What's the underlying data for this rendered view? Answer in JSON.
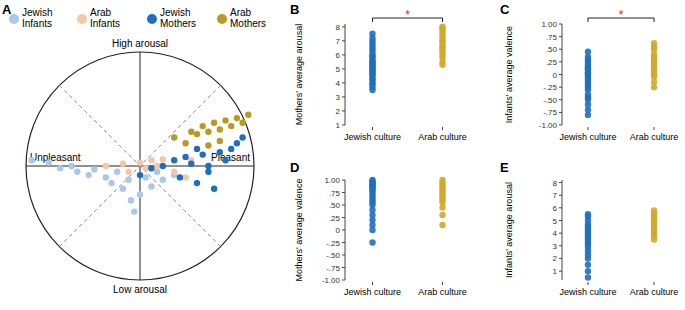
{
  "chart_data": [
    {
      "type": "scatter",
      "label": "A",
      "xlim": [
        -1,
        1
      ],
      "ylim": [
        -1,
        1
      ],
      "tick_labels": false,
      "quadrant_labels": {
        "top": "High arousal",
        "bottom": "Low arousal",
        "left": "Unpleasant",
        "right": "Pleasant"
      },
      "series": [
        {
          "name": "Jewish Infants",
          "color": "#a9c8ea",
          "x": [
            -0.95,
            -0.8,
            -0.7,
            -0.6,
            -0.55,
            -0.45,
            -0.4,
            -0.3,
            -0.25,
            -0.2,
            -0.15,
            -0.1,
            -0.08,
            -0.05,
            0,
            0.05,
            0.1,
            0.15,
            0.2,
            0.3
          ],
          "values": [
            0.05,
            0.03,
            -0.02,
            0,
            -0.05,
            -0.08,
            -0.03,
            -0.1,
            -0.15,
            -0.05,
            -0.2,
            -0.12,
            -0.3,
            -0.4,
            -0.25,
            -0.1,
            -0.18,
            -0.05,
            -0.12,
            -0.08
          ]
        },
        {
          "name": "Arab Infants",
          "color": "#f6c7a6",
          "x": [
            -0.3,
            -0.15,
            -0.1,
            0,
            0.05,
            0.1,
            0.15,
            0.2,
            0.3,
            0.4,
            0.45
          ],
          "values": [
            0,
            0.02,
            -0.05,
            0.03,
            -0.02,
            0.05,
            0,
            0.06,
            -0.05,
            -0.1,
            0.05
          ]
        },
        {
          "name": "Jewish Mothers",
          "color": "#1f6fc0",
          "x": [
            0,
            0.1,
            0.2,
            0.3,
            0.35,
            0.4,
            0.45,
            0.5,
            0.55,
            0.6,
            0.65,
            0.7,
            0.75,
            0.8,
            0.85,
            0.9,
            0.6,
            0.5
          ],
          "values": [
            -0.08,
            -0.02,
            0,
            0.05,
            -0.1,
            0.08,
            0.02,
            -0.15,
            0.1,
            0,
            -0.2,
            0.12,
            0.05,
            0.15,
            0.2,
            0.25,
            -0.05,
            0.15
          ]
        },
        {
          "name": "Arab Mothers",
          "color": "#bb9a22",
          "x": [
            0.3,
            0.4,
            0.45,
            0.5,
            0.55,
            0.6,
            0.65,
            0.7,
            0.75,
            0.8,
            0.85,
            0.9,
            0.95,
            0.7,
            0.6
          ],
          "values": [
            0.25,
            0.2,
            0.3,
            0.28,
            0.35,
            0.3,
            0.38,
            0.32,
            0.4,
            0.35,
            0.42,
            0.38,
            0.45,
            0.22,
            0.18
          ]
        }
      ]
    },
    {
      "type": "strip",
      "label": "B",
      "y_label": "Mothers' average arousal",
      "categories": [
        "Jewish culture",
        "Arab culture"
      ],
      "colors": [
        "#1f6fc0",
        "#d4a828"
      ],
      "ylim": [
        1,
        8.2
      ],
      "yticks": [
        1,
        2,
        3,
        4,
        5,
        6,
        7,
        8
      ],
      "values": [
        [
          3.5,
          3.7,
          3.9,
          4.0,
          4.2,
          4.3,
          4.5,
          4.6,
          4.7,
          4.8,
          4.9,
          5.0,
          5.1,
          5.2,
          5.3,
          5.4,
          5.5,
          5.6,
          5.8,
          5.9,
          6.0,
          6.2,
          6.4,
          6.6,
          6.8,
          7.0,
          7.2,
          7.5
        ],
        [
          5.3,
          5.5,
          5.8,
          6.0,
          6.2,
          6.4,
          6.5,
          6.6,
          6.8,
          7.0,
          7.1,
          7.3,
          7.5,
          7.7,
          7.9,
          8.0
        ]
      ],
      "annotations": [
        {
          "text": "*",
          "between": [
            "Jewish culture",
            "Arab culture"
          ]
        }
      ]
    },
    {
      "type": "strip",
      "label": "C",
      "y_label": "Infants' average valence",
      "categories": [
        "Jewish culture",
        "Arab culture"
      ],
      "colors": [
        "#1f6fc0",
        "#d4a828"
      ],
      "ylim": [
        -1,
        1
      ],
      "yticks": [
        {
          "value": -1,
          "label": "-1.00"
        },
        {
          "value": -0.75,
          "label": "-.75"
        },
        {
          "value": -0.5,
          "label": "-.50"
        },
        {
          "value": -0.25,
          "label": "-.25"
        },
        0,
        {
          "value": 0.25,
          "label": ".25"
        },
        {
          "value": 0.5,
          "label": ".50"
        },
        {
          "value": 0.75,
          "label": ".75"
        },
        {
          "value": 1,
          "label": "1.00"
        }
      ],
      "values": [
        [
          -0.8,
          -0.7,
          -0.6,
          -0.5,
          -0.45,
          -0.4,
          -0.3,
          -0.25,
          -0.2,
          -0.15,
          -0.1,
          -0.05,
          0,
          0.02,
          0.05,
          0.1,
          0.12,
          0.15,
          0.2,
          0.25,
          0.3,
          0.35,
          0.45
        ],
        [
          -0.25,
          -0.15,
          -0.05,
          0,
          0.05,
          0.1,
          0.15,
          0.2,
          0.25,
          0.3,
          0.35,
          0.4,
          0.5,
          0.55,
          0.62
        ]
      ],
      "annotations": [
        {
          "text": "*",
          "between": [
            "Jewish culture",
            "Arab culture"
          ]
        }
      ]
    },
    {
      "type": "strip",
      "label": "D",
      "y_label": "Mothers' average valence",
      "categories": [
        "Jewish culture",
        "Arab culture"
      ],
      "colors": [
        "#1f6fc0",
        "#d4a828"
      ],
      "ylim": [
        -1,
        1
      ],
      "yticks": [
        {
          "value": -1,
          "label": "-1.00"
        },
        {
          "value": -0.75,
          "label": "-.75"
        },
        {
          "value": -0.5,
          "label": "-.50"
        },
        {
          "value": -0.25,
          "label": "-.25"
        },
        0,
        {
          "value": 0.25,
          "label": ".25"
        },
        {
          "value": 0.5,
          "label": ".50"
        },
        {
          "value": 0.75,
          "label": ".75"
        },
        {
          "value": 1,
          "label": "1.00"
        }
      ],
      "values": [
        [
          -0.25,
          0,
          0.1,
          0.2,
          0.3,
          0.4,
          0.5,
          0.55,
          0.6,
          0.65,
          0.7,
          0.75,
          0.8,
          0.82,
          0.85,
          0.88,
          0.9,
          0.92,
          0.95,
          0.97,
          1.0
        ],
        [
          0.1,
          0.3,
          0.45,
          0.55,
          0.6,
          0.65,
          0.7,
          0.75,
          0.8,
          0.85,
          0.9,
          0.95,
          1.0
        ]
      ]
    },
    {
      "type": "strip",
      "label": "E",
      "y_label": "Infants' average arousal",
      "categories": [
        "Jewish culture",
        "Arab culture"
      ],
      "colors": [
        "#1f6fc0",
        "#d4a828"
      ],
      "ylim": [
        0.3,
        8.2
      ],
      "yticks": [
        1,
        2,
        3,
        4,
        5,
        6,
        7,
        8
      ],
      "values": [
        [
          0.5,
          1.0,
          1.5,
          2.0,
          2.3,
          2.6,
          2.9,
          3.1,
          3.3,
          3.5,
          3.7,
          3.9,
          4.1,
          4.3,
          4.5,
          4.7,
          5.0,
          5.3,
          5.5
        ],
        [
          3.5,
          3.8,
          4.0,
          4.2,
          4.4,
          4.6,
          4.8,
          5.0,
          5.2,
          5.4,
          5.6,
          5.8
        ]
      ]
    }
  ]
}
